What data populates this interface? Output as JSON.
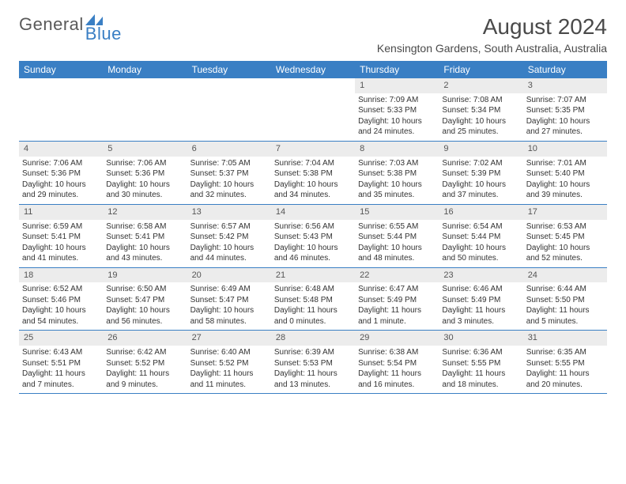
{
  "logo": {
    "text1": "General",
    "text2": "Blue"
  },
  "title": "August 2024",
  "location": "Kensington Gardens, South Australia, Australia",
  "day_headers": [
    "Sunday",
    "Monday",
    "Tuesday",
    "Wednesday",
    "Thursday",
    "Friday",
    "Saturday"
  ],
  "colors": {
    "header_bg": "#3a7fc4",
    "daynum_bg": "#ececec",
    "text": "#333333",
    "title_text": "#4a4a4a"
  },
  "weeks": [
    [
      {
        "empty": true
      },
      {
        "empty": true
      },
      {
        "empty": true
      },
      {
        "empty": true
      },
      {
        "day": "1",
        "sunrise": "Sunrise: 7:09 AM",
        "sunset": "Sunset: 5:33 PM",
        "daylight": "Daylight: 10 hours and 24 minutes."
      },
      {
        "day": "2",
        "sunrise": "Sunrise: 7:08 AM",
        "sunset": "Sunset: 5:34 PM",
        "daylight": "Daylight: 10 hours and 25 minutes."
      },
      {
        "day": "3",
        "sunrise": "Sunrise: 7:07 AM",
        "sunset": "Sunset: 5:35 PM",
        "daylight": "Daylight: 10 hours and 27 minutes."
      }
    ],
    [
      {
        "day": "4",
        "sunrise": "Sunrise: 7:06 AM",
        "sunset": "Sunset: 5:36 PM",
        "daylight": "Daylight: 10 hours and 29 minutes."
      },
      {
        "day": "5",
        "sunrise": "Sunrise: 7:06 AM",
        "sunset": "Sunset: 5:36 PM",
        "daylight": "Daylight: 10 hours and 30 minutes."
      },
      {
        "day": "6",
        "sunrise": "Sunrise: 7:05 AM",
        "sunset": "Sunset: 5:37 PM",
        "daylight": "Daylight: 10 hours and 32 minutes."
      },
      {
        "day": "7",
        "sunrise": "Sunrise: 7:04 AM",
        "sunset": "Sunset: 5:38 PM",
        "daylight": "Daylight: 10 hours and 34 minutes."
      },
      {
        "day": "8",
        "sunrise": "Sunrise: 7:03 AM",
        "sunset": "Sunset: 5:38 PM",
        "daylight": "Daylight: 10 hours and 35 minutes."
      },
      {
        "day": "9",
        "sunrise": "Sunrise: 7:02 AM",
        "sunset": "Sunset: 5:39 PM",
        "daylight": "Daylight: 10 hours and 37 minutes."
      },
      {
        "day": "10",
        "sunrise": "Sunrise: 7:01 AM",
        "sunset": "Sunset: 5:40 PM",
        "daylight": "Daylight: 10 hours and 39 minutes."
      }
    ],
    [
      {
        "day": "11",
        "sunrise": "Sunrise: 6:59 AM",
        "sunset": "Sunset: 5:41 PM",
        "daylight": "Daylight: 10 hours and 41 minutes."
      },
      {
        "day": "12",
        "sunrise": "Sunrise: 6:58 AM",
        "sunset": "Sunset: 5:41 PM",
        "daylight": "Daylight: 10 hours and 43 minutes."
      },
      {
        "day": "13",
        "sunrise": "Sunrise: 6:57 AM",
        "sunset": "Sunset: 5:42 PM",
        "daylight": "Daylight: 10 hours and 44 minutes."
      },
      {
        "day": "14",
        "sunrise": "Sunrise: 6:56 AM",
        "sunset": "Sunset: 5:43 PM",
        "daylight": "Daylight: 10 hours and 46 minutes."
      },
      {
        "day": "15",
        "sunrise": "Sunrise: 6:55 AM",
        "sunset": "Sunset: 5:44 PM",
        "daylight": "Daylight: 10 hours and 48 minutes."
      },
      {
        "day": "16",
        "sunrise": "Sunrise: 6:54 AM",
        "sunset": "Sunset: 5:44 PM",
        "daylight": "Daylight: 10 hours and 50 minutes."
      },
      {
        "day": "17",
        "sunrise": "Sunrise: 6:53 AM",
        "sunset": "Sunset: 5:45 PM",
        "daylight": "Daylight: 10 hours and 52 minutes."
      }
    ],
    [
      {
        "day": "18",
        "sunrise": "Sunrise: 6:52 AM",
        "sunset": "Sunset: 5:46 PM",
        "daylight": "Daylight: 10 hours and 54 minutes."
      },
      {
        "day": "19",
        "sunrise": "Sunrise: 6:50 AM",
        "sunset": "Sunset: 5:47 PM",
        "daylight": "Daylight: 10 hours and 56 minutes."
      },
      {
        "day": "20",
        "sunrise": "Sunrise: 6:49 AM",
        "sunset": "Sunset: 5:47 PM",
        "daylight": "Daylight: 10 hours and 58 minutes."
      },
      {
        "day": "21",
        "sunrise": "Sunrise: 6:48 AM",
        "sunset": "Sunset: 5:48 PM",
        "daylight": "Daylight: 11 hours and 0 minutes."
      },
      {
        "day": "22",
        "sunrise": "Sunrise: 6:47 AM",
        "sunset": "Sunset: 5:49 PM",
        "daylight": "Daylight: 11 hours and 1 minute."
      },
      {
        "day": "23",
        "sunrise": "Sunrise: 6:46 AM",
        "sunset": "Sunset: 5:49 PM",
        "daylight": "Daylight: 11 hours and 3 minutes."
      },
      {
        "day": "24",
        "sunrise": "Sunrise: 6:44 AM",
        "sunset": "Sunset: 5:50 PM",
        "daylight": "Daylight: 11 hours and 5 minutes."
      }
    ],
    [
      {
        "day": "25",
        "sunrise": "Sunrise: 6:43 AM",
        "sunset": "Sunset: 5:51 PM",
        "daylight": "Daylight: 11 hours and 7 minutes."
      },
      {
        "day": "26",
        "sunrise": "Sunrise: 6:42 AM",
        "sunset": "Sunset: 5:52 PM",
        "daylight": "Daylight: 11 hours and 9 minutes."
      },
      {
        "day": "27",
        "sunrise": "Sunrise: 6:40 AM",
        "sunset": "Sunset: 5:52 PM",
        "daylight": "Daylight: 11 hours and 11 minutes."
      },
      {
        "day": "28",
        "sunrise": "Sunrise: 6:39 AM",
        "sunset": "Sunset: 5:53 PM",
        "daylight": "Daylight: 11 hours and 13 minutes."
      },
      {
        "day": "29",
        "sunrise": "Sunrise: 6:38 AM",
        "sunset": "Sunset: 5:54 PM",
        "daylight": "Daylight: 11 hours and 16 minutes."
      },
      {
        "day": "30",
        "sunrise": "Sunrise: 6:36 AM",
        "sunset": "Sunset: 5:55 PM",
        "daylight": "Daylight: 11 hours and 18 minutes."
      },
      {
        "day": "31",
        "sunrise": "Sunrise: 6:35 AM",
        "sunset": "Sunset: 5:55 PM",
        "daylight": "Daylight: 11 hours and 20 minutes."
      }
    ]
  ]
}
